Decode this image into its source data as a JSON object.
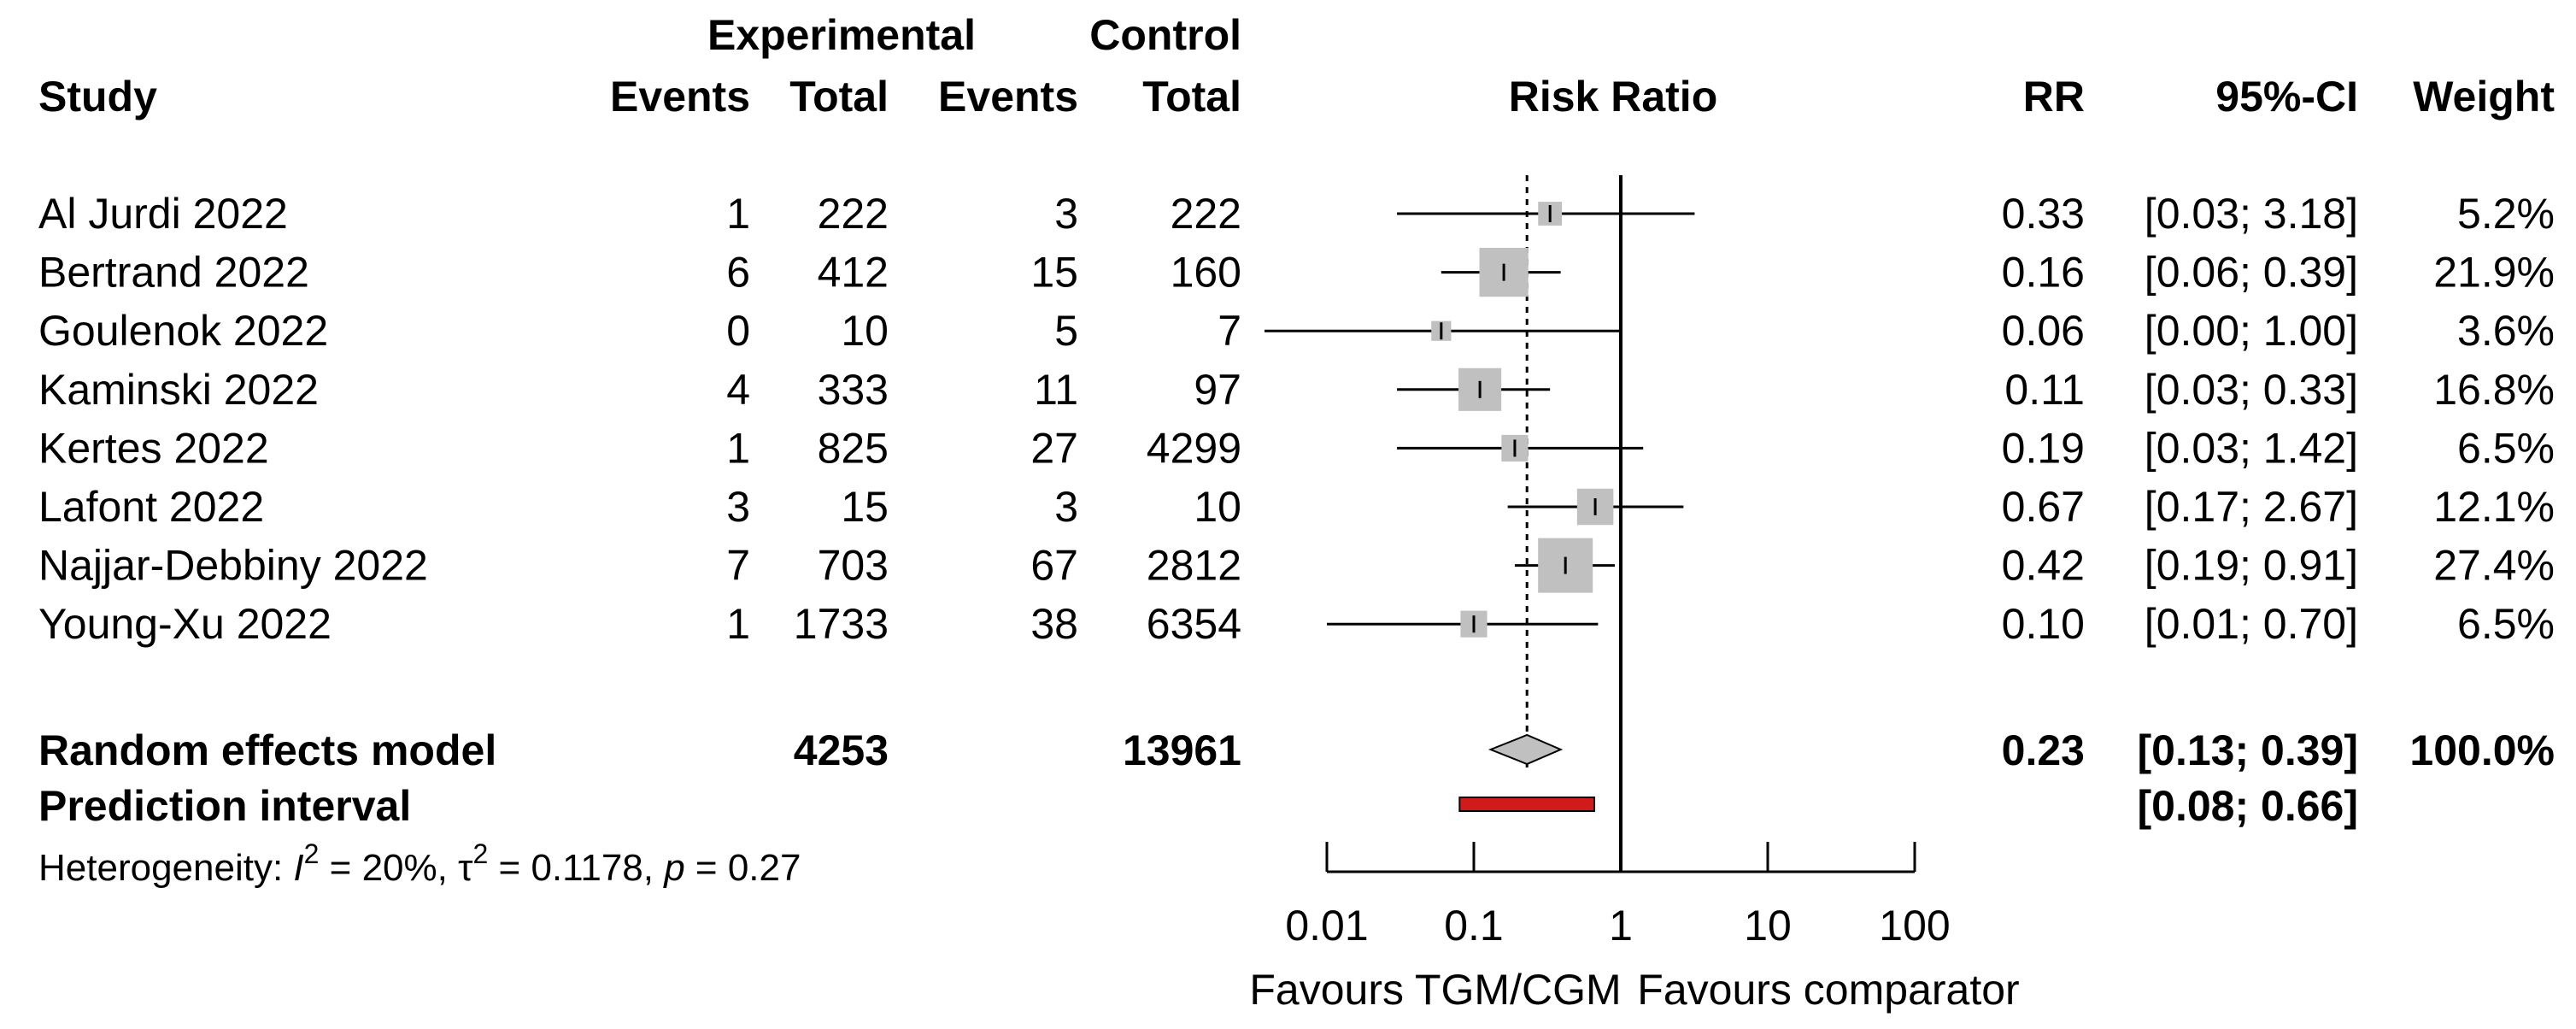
{
  "header": {
    "group1": "Experimental",
    "group2": "Control",
    "study": "Study",
    "events": "Events",
    "total": "Total",
    "effect": "Risk Ratio",
    "rr": "RR",
    "ci": "95%-CI",
    "weight": "Weight"
  },
  "chart_data": {
    "type": "forest",
    "xlabel_left": "Favours TGM/CGM",
    "xlabel_right": "Favours comparator",
    "x_scale": "log",
    "x_ticks": [
      0.01,
      0.1,
      1,
      10,
      100
    ],
    "x_tick_labels": [
      "0.01",
      "0.1",
      "1",
      "10",
      "100"
    ],
    "null_value": 1,
    "studies": [
      {
        "name": "Al Jurdi 2022",
        "exp_events": "1",
        "exp_total": "222",
        "ctl_events": "3",
        "ctl_total": "222",
        "rr": 0.33,
        "lo": 0.03,
        "hi": 3.18,
        "rr_text": "0.33",
        "ci_text": "[0.03; 3.18]",
        "weight": 5.2,
        "weight_text": "5.2%"
      },
      {
        "name": "Bertrand 2022",
        "exp_events": "6",
        "exp_total": "412",
        "ctl_events": "15",
        "ctl_total": "160",
        "rr": 0.16,
        "lo": 0.06,
        "hi": 0.39,
        "rr_text": "0.16",
        "ci_text": "[0.06; 0.39]",
        "weight": 21.9,
        "weight_text": "21.9%"
      },
      {
        "name": "Goulenok 2022",
        "exp_events": "0",
        "exp_total": "10",
        "ctl_events": "5",
        "ctl_total": "7",
        "rr": 0.06,
        "lo": 0.0,
        "hi": 1.0,
        "rr_text": "0.06",
        "ci_text": "[0.00; 1.00]",
        "weight": 3.6,
        "weight_text": "3.6%"
      },
      {
        "name": "Kaminski 2022",
        "exp_events": "4",
        "exp_total": "333",
        "ctl_events": "11",
        "ctl_total": "97",
        "rr": 0.11,
        "lo": 0.03,
        "hi": 0.33,
        "rr_text": "0.11",
        "ci_text": "[0.03; 0.33]",
        "weight": 16.8,
        "weight_text": "16.8%"
      },
      {
        "name": "Kertes 2022",
        "exp_events": "1",
        "exp_total": "825",
        "ctl_events": "27",
        "ctl_total": "4299",
        "rr": 0.19,
        "lo": 0.03,
        "hi": 1.42,
        "rr_text": "0.19",
        "ci_text": "[0.03; 1.42]",
        "weight": 6.5,
        "weight_text": "6.5%"
      },
      {
        "name": "Lafont 2022",
        "exp_events": "3",
        "exp_total": "15",
        "ctl_events": "3",
        "ctl_total": "10",
        "rr": 0.67,
        "lo": 0.17,
        "hi": 2.67,
        "rr_text": "0.67",
        "ci_text": "[0.17; 2.67]",
        "weight": 12.1,
        "weight_text": "12.1%"
      },
      {
        "name": "Najjar-Debbiny 2022",
        "exp_events": "7",
        "exp_total": "703",
        "ctl_events": "67",
        "ctl_total": "2812",
        "rr": 0.42,
        "lo": 0.19,
        "hi": 0.91,
        "rr_text": "0.42",
        "ci_text": "[0.19; 0.91]",
        "weight": 27.4,
        "weight_text": "27.4%"
      },
      {
        "name": "Young-Xu 2022",
        "exp_events": "1",
        "exp_total": "1733",
        "ctl_events": "38",
        "ctl_total": "6354",
        "rr": 0.1,
        "lo": 0.01,
        "hi": 0.7,
        "rr_text": "0.10",
        "ci_text": "[0.01; 0.70]",
        "weight": 6.5,
        "weight_text": "6.5%"
      }
    ],
    "pooled": {
      "label": "Random effects model",
      "exp_total": "4253",
      "ctl_total": "13961",
      "rr": 0.23,
      "lo": 0.13,
      "hi": 0.39,
      "rr_text": "0.23",
      "ci_text": "[0.13; 0.39]",
      "weight_text": "100.0%"
    },
    "prediction": {
      "label": "Prediction interval",
      "lo": 0.08,
      "hi": 0.66,
      "ci_text": "[0.08; 0.66]"
    },
    "heterogeneity": {
      "prefix": "Heterogeneity: ",
      "i2_symbol": "I",
      "i2_sup": "2",
      "i2_value": " = 20%, ",
      "tau_symbol": "τ",
      "tau_sup": "2",
      "tau_value": " = 0.1178, ",
      "p_symbol": "p",
      "p_value": " = 0.27"
    },
    "colors": {
      "box": "#c0c0c0",
      "diamond": "#c0c0c0",
      "prediction": "#d11a1a",
      "line": "#000000"
    }
  }
}
